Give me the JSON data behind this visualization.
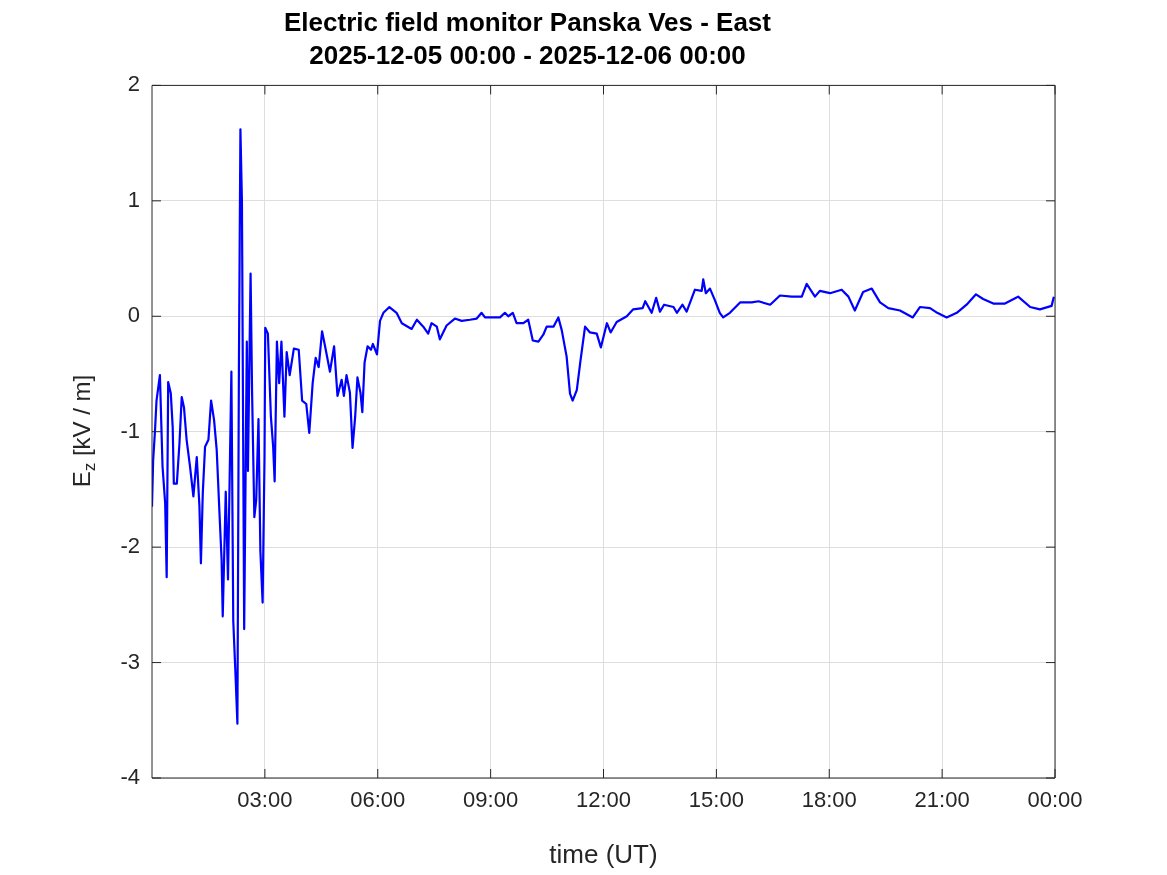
{
  "chart_data": {
    "type": "line",
    "title": "Electric field monitor Panska Ves - East",
    "subtitle": "2025-12-05 00:00 - 2025-12-06 00:00",
    "xlabel": "time (UT)",
    "ylabel": "E$_{z}$ [kV / m]",
    "xlim": [
      0,
      24
    ],
    "xticks": [
      {
        "value": 3,
        "label": "03:00"
      },
      {
        "value": 6,
        "label": "06:00"
      },
      {
        "value": 9,
        "label": "09:00"
      },
      {
        "value": 12,
        "label": "12:00"
      },
      {
        "value": 15,
        "label": "15:00"
      },
      {
        "value": 18,
        "label": "18:00"
      },
      {
        "value": 21,
        "label": "21:00"
      },
      {
        "value": 24,
        "label": "00:00"
      }
    ],
    "ylim": [
      -4,
      2
    ],
    "yticks": [
      -4,
      -3,
      -2,
      -1,
      0,
      1,
      2
    ],
    "grid": true,
    "legend": false,
    "marker": "none",
    "line_style": "solid",
    "series": [
      {
        "color": "#0000ff",
        "x": [
          0,
          0.03,
          0.08,
          0.12,
          0.21,
          0.28,
          0.35,
          0.39,
          0.43,
          0.5,
          0.55,
          0.58,
          0.66,
          0.73,
          0.79,
          0.85,
          0.92,
          1.01,
          1.1,
          1.19,
          1.26,
          1.3,
          1.35,
          1.41,
          1.5,
          1.57,
          1.65,
          1.72,
          1.79,
          1.85,
          1.88,
          1.96,
          2.02,
          2.11,
          2.16,
          2.22,
          2.27,
          2.31,
          2.35,
          2.39,
          2.45,
          2.52,
          2.55,
          2.62,
          2.66,
          2.72,
          2.77,
          2.83,
          2.88,
          2.94,
          2.99,
          3.01,
          3.08,
          3.16,
          3.22,
          3.26,
          3.32,
          3.38,
          3.44,
          3.52,
          3.58,
          3.66,
          3.77,
          3.9,
          3.99,
          4.1,
          4.18,
          4.27,
          4.35,
          4.43,
          4.52,
          4.6,
          4.73,
          4.84,
          4.93,
          5.04,
          5.1,
          5.17,
          5.26,
          5.33,
          5.4,
          5.46,
          5.54,
          5.59,
          5.65,
          5.73,
          5.82,
          5.87,
          5.98,
          6.06,
          6.15,
          6.31,
          6.5,
          6.64,
          6.9,
          7.04,
          7.21,
          7.34,
          7.43,
          7.57,
          7.65,
          7.83,
          8.05,
          8.23,
          8.45,
          8.63,
          8.76,
          8.85,
          9.25,
          9.38,
          9.47,
          9.59,
          9.69,
          9.87,
          10,
          10.12,
          10.27,
          10.4,
          10.49,
          10.67,
          10.8,
          10.89,
          11.02,
          11.11,
          11.18,
          11.29,
          11.39,
          11.51,
          11.64,
          11.82,
          11.93,
          12.09,
          12.19,
          12.35,
          12.62,
          12.79,
          13.04,
          13.11,
          13.28,
          13.4,
          13.5,
          13.61,
          13.86,
          13.95,
          14.1,
          14.21,
          14.43,
          14.61,
          14.65,
          14.72,
          14.83,
          14.96,
          15.09,
          15.18,
          15.36,
          15.63,
          15.94,
          16.12,
          16.43,
          16.69,
          17,
          17.27,
          17.4,
          17.62,
          17.75,
          18.02,
          18.33,
          18.51,
          18.68,
          18.9,
          19.13,
          19.35,
          19.57,
          19.88,
          20.22,
          20.41,
          20.68,
          20.87,
          21.12,
          21.39,
          21.65,
          21.9,
          22.09,
          22.36,
          22.67,
          23.02,
          23.34,
          23.6,
          23.91,
          23.97
        ],
        "values": [
          -1.65,
          -1.25,
          -0.99,
          -0.73,
          -0.51,
          -1.3,
          -1.62,
          -2.26,
          -0.57,
          -0.67,
          -0.96,
          -1.45,
          -1.45,
          -1.1,
          -0.7,
          -0.79,
          -1.07,
          -1.3,
          -1.56,
          -1.22,
          -1.64,
          -2.14,
          -1.53,
          -1.13,
          -1.07,
          -0.73,
          -0.9,
          -1.16,
          -1.68,
          -2.11,
          -2.6,
          -1.52,
          -2.28,
          -0.48,
          -2.64,
          -3.11,
          -3.53,
          -0.44,
          1.62,
          1,
          -2.71,
          -0.22,
          -1.34,
          0.37,
          -0.66,
          -1.74,
          -1.59,
          -0.89,
          -2.03,
          -2.48,
          -1.23,
          -0.1,
          -0.15,
          -0.87,
          -1.13,
          -1.43,
          -0.22,
          -0.58,
          -0.22,
          -0.87,
          -0.31,
          -0.51,
          -0.28,
          -0.29,
          -0.73,
          -0.76,
          -1.01,
          -0.58,
          -0.36,
          -0.44,
          -0.13,
          -0.26,
          -0.48,
          -0.26,
          -0.69,
          -0.55,
          -0.69,
          -0.51,
          -0.66,
          -1.14,
          -0.87,
          -0.53,
          -0.66,
          -0.83,
          -0.4,
          -0.26,
          -0.29,
          -0.24,
          -0.33,
          -0.04,
          0.03,
          0.08,
          0.03,
          -0.06,
          -0.11,
          -0.03,
          -0.09,
          -0.15,
          -0.06,
          -0.09,
          -0.2,
          -0.08,
          -0.02,
          -0.04,
          -0.03,
          -0.02,
          0.03,
          -0.01,
          -0.01,
          0.03,
          0,
          0.03,
          -0.06,
          -0.06,
          -0.03,
          -0.21,
          -0.22,
          -0.16,
          -0.09,
          -0.09,
          -0.01,
          -0.12,
          -0.35,
          -0.67,
          -0.73,
          -0.64,
          -0.38,
          -0.09,
          -0.14,
          -0.15,
          -0.27,
          -0.06,
          -0.14,
          -0.05,
          0,
          0.06,
          0.07,
          0.13,
          0.03,
          0.16,
          0.04,
          0.1,
          0.08,
          0.03,
          0.1,
          0.04,
          0.23,
          0.22,
          0.32,
          0.2,
          0.24,
          0.14,
          0.03,
          -0.01,
          0.03,
          0.12,
          0.12,
          0.13,
          0.1,
          0.18,
          0.17,
          0.17,
          0.28,
          0.17,
          0.22,
          0.2,
          0.23,
          0.17,
          0.05,
          0.21,
          0.24,
          0.12,
          0.07,
          0.05,
          -0.01,
          0.08,
          0.07,
          0.03,
          -0.01,
          0.03,
          0.1,
          0.19,
          0.15,
          0.11,
          0.11,
          0.17,
          0.08,
          0.06,
          0.09,
          0.17
        ]
      }
    ]
  }
}
